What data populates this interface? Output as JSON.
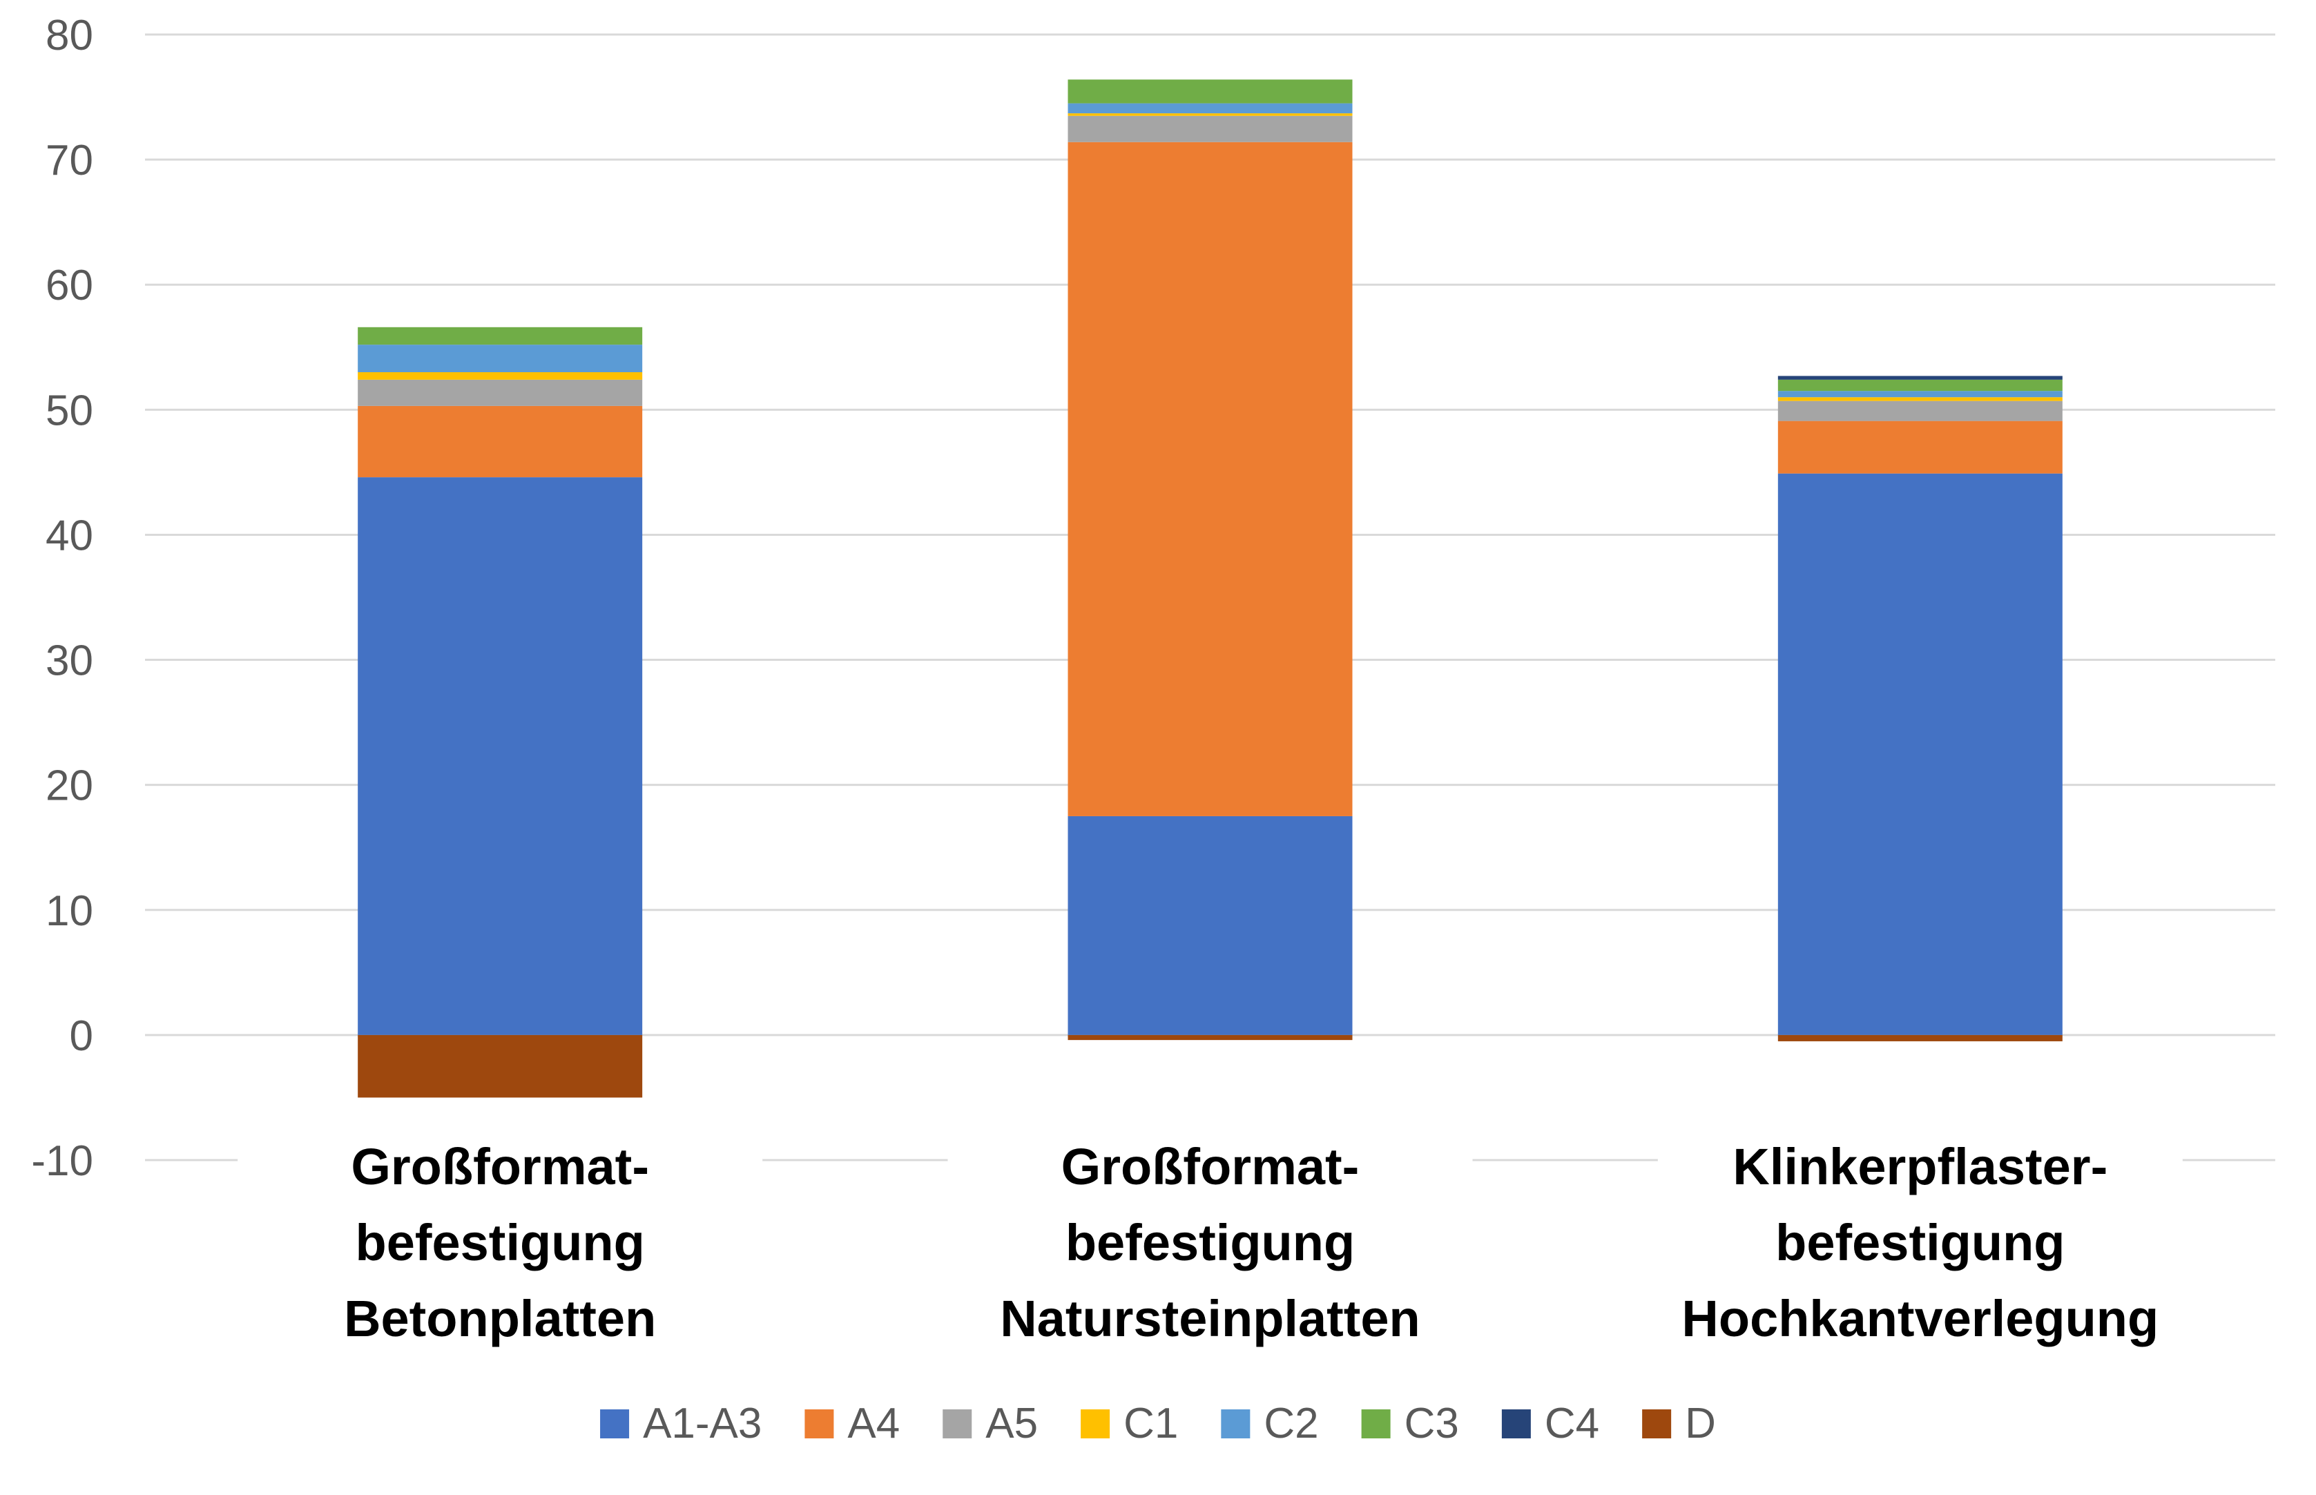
{
  "chart_data": {
    "type": "bar",
    "stacked": true,
    "title": "",
    "xlabel": "",
    "ylabel": "",
    "ylim": [
      -10,
      80
    ],
    "yticks": [
      -10,
      0,
      10,
      20,
      30,
      40,
      50,
      60,
      70,
      80
    ],
    "grid": true,
    "legend_position": "bottom",
    "categories": [
      [
        "Großformat-",
        "befestigung",
        "Betonplatten"
      ],
      [
        "Großformat-",
        "befestigung",
        "Natursteinplatten"
      ],
      [
        "Klinkerpflaster-",
        "befestigung",
        "Hochkantverlegung"
      ]
    ],
    "series": [
      {
        "name": "A1-A3",
        "color": "#4472C4",
        "values": [
          44.6,
          17.5,
          44.9
        ]
      },
      {
        "name": "A4",
        "color": "#ED7D31",
        "values": [
          5.7,
          53.9,
          4.2
        ]
      },
      {
        "name": "A5",
        "color": "#A5A5A5",
        "values": [
          2.1,
          2.1,
          1.6
        ]
      },
      {
        "name": "C1",
        "color": "#FFC000",
        "values": [
          0.6,
          0.2,
          0.3
        ]
      },
      {
        "name": "C2",
        "color": "#5B9BD5",
        "values": [
          2.2,
          0.8,
          0.5
        ]
      },
      {
        "name": "C3",
        "color": "#70AD47",
        "values": [
          1.4,
          1.9,
          0.9
        ]
      },
      {
        "name": "C4",
        "color": "#264478",
        "values": [
          0.0,
          0.0,
          0.3
        ]
      },
      {
        "name": "D",
        "color": "#9E480E",
        "values": [
          -5.0,
          -0.4,
          -0.5
        ]
      }
    ]
  }
}
